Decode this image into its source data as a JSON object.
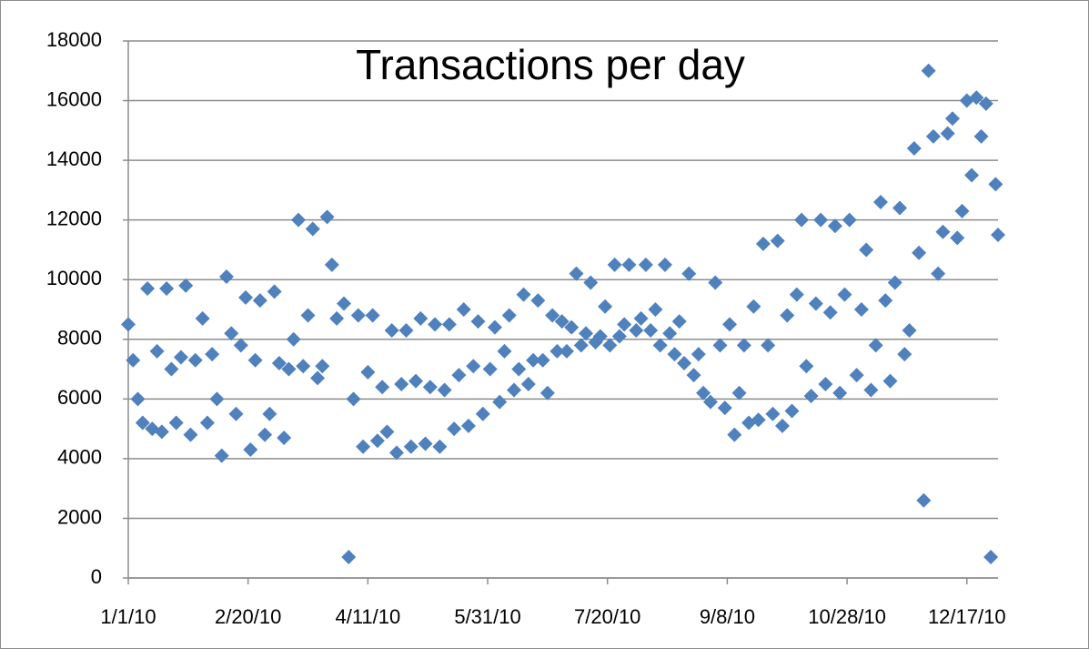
{
  "chart_data": {
    "type": "scatter",
    "title": "Transactions per day",
    "color": "#4f81bd",
    "grid": true,
    "xlim": [
      "1/1/10",
      "12/30/10"
    ],
    "xticks": [
      "1/1/10",
      "2/20/10",
      "4/11/10",
      "5/31/10",
      "7/20/10",
      "9/8/10",
      "10/28/10",
      "12/17/10"
    ],
    "ylim": [
      0,
      18000
    ],
    "yticks": [
      0,
      2000,
      4000,
      6000,
      8000,
      10000,
      12000,
      14000,
      16000,
      18000
    ],
    "x": [
      "1/1/10",
      "1/3/10",
      "1/5/10",
      "1/7/10",
      "1/9/10",
      "1/11/10",
      "1/13/10",
      "1/15/10",
      "1/17/10",
      "1/19/10",
      "1/21/10",
      "1/23/10",
      "1/25/10",
      "1/27/10",
      "1/29/10",
      "2/1/10",
      "2/3/10",
      "2/5/10",
      "2/7/10",
      "2/9/10",
      "2/11/10",
      "2/13/10",
      "2/15/10",
      "2/17/10",
      "2/19/10",
      "2/21/10",
      "2/23/10",
      "2/25/10",
      "2/27/10",
      "3/1/10",
      "3/3/10",
      "3/5/10",
      "3/7/10",
      "3/9/10",
      "3/11/10",
      "3/13/10",
      "3/15/10",
      "3/17/10",
      "3/19/10",
      "3/21/10",
      "3/23/10",
      "3/25/10",
      "3/27/10",
      "3/29/10",
      "4/1/10",
      "4/3/10",
      "4/5/10",
      "4/7/10",
      "4/9/10",
      "4/11/10",
      "4/13/10",
      "4/15/10",
      "4/17/10",
      "4/19/10",
      "4/21/10",
      "4/23/10",
      "4/25/10",
      "4/27/10",
      "4/29/10",
      "5/1/10",
      "5/3/10",
      "5/5/10",
      "5/7/10",
      "5/9/10",
      "5/11/10",
      "5/13/10",
      "5/15/10",
      "5/17/10",
      "5/19/10",
      "5/21/10",
      "5/23/10",
      "5/25/10",
      "5/27/10",
      "5/29/10",
      "6/1/10",
      "6/3/10",
      "6/5/10",
      "6/7/10",
      "6/9/10",
      "6/11/10",
      "6/13/10",
      "6/15/10",
      "6/17/10",
      "6/19/10",
      "6/21/10",
      "6/23/10",
      "6/25/10",
      "6/27/10",
      "6/29/10",
      "7/1/10",
      "7/3/10",
      "7/5/10",
      "7/7/10",
      "7/9/10",
      "7/11/10",
      "7/13/10",
      "7/15/10",
      "7/17/10",
      "7/19/10",
      "7/21/10",
      "7/23/10",
      "7/25/10",
      "7/27/10",
      "7/29/10",
      "8/1/10",
      "8/3/10",
      "8/5/10",
      "8/7/10",
      "8/9/10",
      "8/11/10",
      "8/13/10",
      "8/15/10",
      "8/17/10",
      "8/19/10",
      "8/21/10",
      "8/23/10",
      "8/25/10",
      "8/27/10",
      "8/29/10",
      "9/1/10",
      "9/3/10",
      "9/5/10",
      "9/7/10",
      "9/9/10",
      "9/11/10",
      "9/13/10",
      "9/15/10",
      "9/17/10",
      "9/19/10",
      "9/21/10",
      "9/23/10",
      "9/25/10",
      "9/27/10",
      "9/29/10",
      "10/1/10",
      "10/3/10",
      "10/5/10",
      "10/7/10",
      "10/9/10",
      "10/11/10",
      "10/13/10",
      "10/15/10",
      "10/17/10",
      "10/19/10",
      "10/21/10",
      "10/23/10",
      "10/25/10",
      "10/27/10",
      "10/29/10",
      "11/1/10",
      "11/3/10",
      "11/5/10",
      "11/7/10",
      "11/9/10",
      "11/11/10",
      "11/13/10",
      "11/15/10",
      "11/17/10",
      "11/19/10",
      "11/21/10",
      "11/23/10",
      "11/25/10",
      "11/27/10",
      "11/29/10",
      "12/1/10",
      "12/3/10",
      "12/5/10",
      "12/7/10",
      "12/9/10",
      "12/11/10",
      "12/13/10",
      "12/15/10",
      "12/17/10",
      "12/19/10",
      "12/21/10",
      "12/23/10",
      "12/25/10",
      "12/27/10",
      "12/29/10",
      "12/30/10"
    ],
    "values": [
      8500,
      7300,
      6000,
      5200,
      9700,
      5000,
      7600,
      4900,
      9700,
      7000,
      5200,
      7400,
      9800,
      4800,
      7300,
      8700,
      5200,
      7500,
      6000,
      4100,
      10100,
      8200,
      5500,
      7800,
      9400,
      4300,
      7300,
      9300,
      4800,
      5500,
      9600,
      7200,
      4700,
      7000,
      8000,
      12000,
      7100,
      8800,
      11700,
      6700,
      7100,
      12100,
      10500,
      8700,
      9200,
      700,
      6000,
      8800,
      4400,
      6900,
      8800,
      4600,
      6400,
      4900,
      8300,
      4200,
      6500,
      8300,
      4400,
      6600,
      8700,
      4500,
      6400,
      8500,
      4400,
      6300,
      8500,
      5000,
      6800,
      9000,
      5100,
      7100,
      8600,
      5500,
      7000,
      8400,
      5900,
      7600,
      8800,
      6300,
      7000,
      9500,
      6500,
      7300,
      9300,
      7300,
      6200,
      8800,
      7600,
      8600,
      7600,
      8400,
      10200,
      7800,
      8200,
      9900,
      7900,
      8100,
      9100,
      7800,
      10500,
      8100,
      8500,
      10500,
      8300,
      8700,
      10500,
      8300,
      9000,
      7800,
      10500,
      8200,
      7500,
      8600,
      7200,
      10200,
      6800,
      7500,
      6200,
      5900,
      9900,
      7800,
      5700,
      8500,
      4800,
      6200,
      7800,
      5200,
      9100,
      5300,
      11200,
      7800,
      5500,
      11300,
      5100,
      8800,
      5600,
      9500,
      12000,
      7100,
      6100,
      9200,
      12000,
      6500,
      8900,
      11800,
      6200,
      9500,
      12000,
      6800,
      9000,
      11000,
      6300,
      7800,
      12600,
      9300,
      6600,
      9900,
      12400,
      7500,
      8300,
      14400,
      10900,
      2600,
      17000,
      14800,
      10200,
      11600,
      14900,
      15400,
      11400,
      12300,
      16000,
      13500,
      16100,
      14800,
      15900,
      700,
      13200,
      11500
    ]
  }
}
